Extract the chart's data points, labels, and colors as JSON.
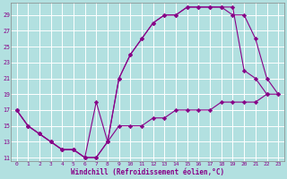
{
  "xlabel": "Windchill (Refroidissement éolien,°C)",
  "bg_color": "#b2e0e0",
  "grid_color": "#c8e8e8",
  "line_color": "#880088",
  "xlim": [
    -0.5,
    23.5
  ],
  "ylim": [
    10.5,
    30.5
  ],
  "xticks": [
    0,
    1,
    2,
    3,
    4,
    5,
    6,
    7,
    8,
    9,
    10,
    11,
    12,
    13,
    14,
    15,
    16,
    17,
    18,
    19,
    20,
    21,
    22,
    23
  ],
  "yticks": [
    11,
    13,
    15,
    17,
    19,
    21,
    23,
    25,
    27,
    29
  ],
  "line1_x": [
    0,
    1,
    2,
    3,
    4,
    5,
    6,
    7,
    8,
    9,
    10,
    11,
    12,
    13,
    14,
    15,
    16,
    17,
    18,
    19,
    20,
    21,
    22
  ],
  "line1_y": [
    17,
    15,
    14,
    13,
    12,
    12,
    11,
    18,
    13,
    21,
    24,
    26,
    28,
    29,
    29,
    30,
    30,
    30,
    30,
    30,
    22,
    21,
    19
  ],
  "line2_x": [
    0,
    1,
    2,
    3,
    4,
    5,
    6,
    7,
    8,
    9,
    10,
    11,
    12,
    13,
    14,
    15,
    16,
    17,
    18,
    19,
    20,
    21,
    22,
    23
  ],
  "line2_y": [
    17,
    15,
    14,
    13,
    12,
    12,
    11,
    11,
    13,
    21,
    24,
    26,
    28,
    29,
    29,
    30,
    30,
    30,
    30,
    29,
    29,
    26,
    21,
    19
  ],
  "line3_x": [
    0,
    1,
    2,
    3,
    4,
    5,
    6,
    7,
    8,
    9,
    10,
    11,
    12,
    13,
    14,
    15,
    16,
    17,
    18,
    19,
    20,
    21,
    22,
    23
  ],
  "line3_y": [
    17,
    15,
    14,
    13,
    12,
    12,
    11,
    11,
    13,
    15,
    15,
    15,
    16,
    16,
    17,
    17,
    17,
    17,
    18,
    18,
    18,
    18,
    19,
    19
  ]
}
